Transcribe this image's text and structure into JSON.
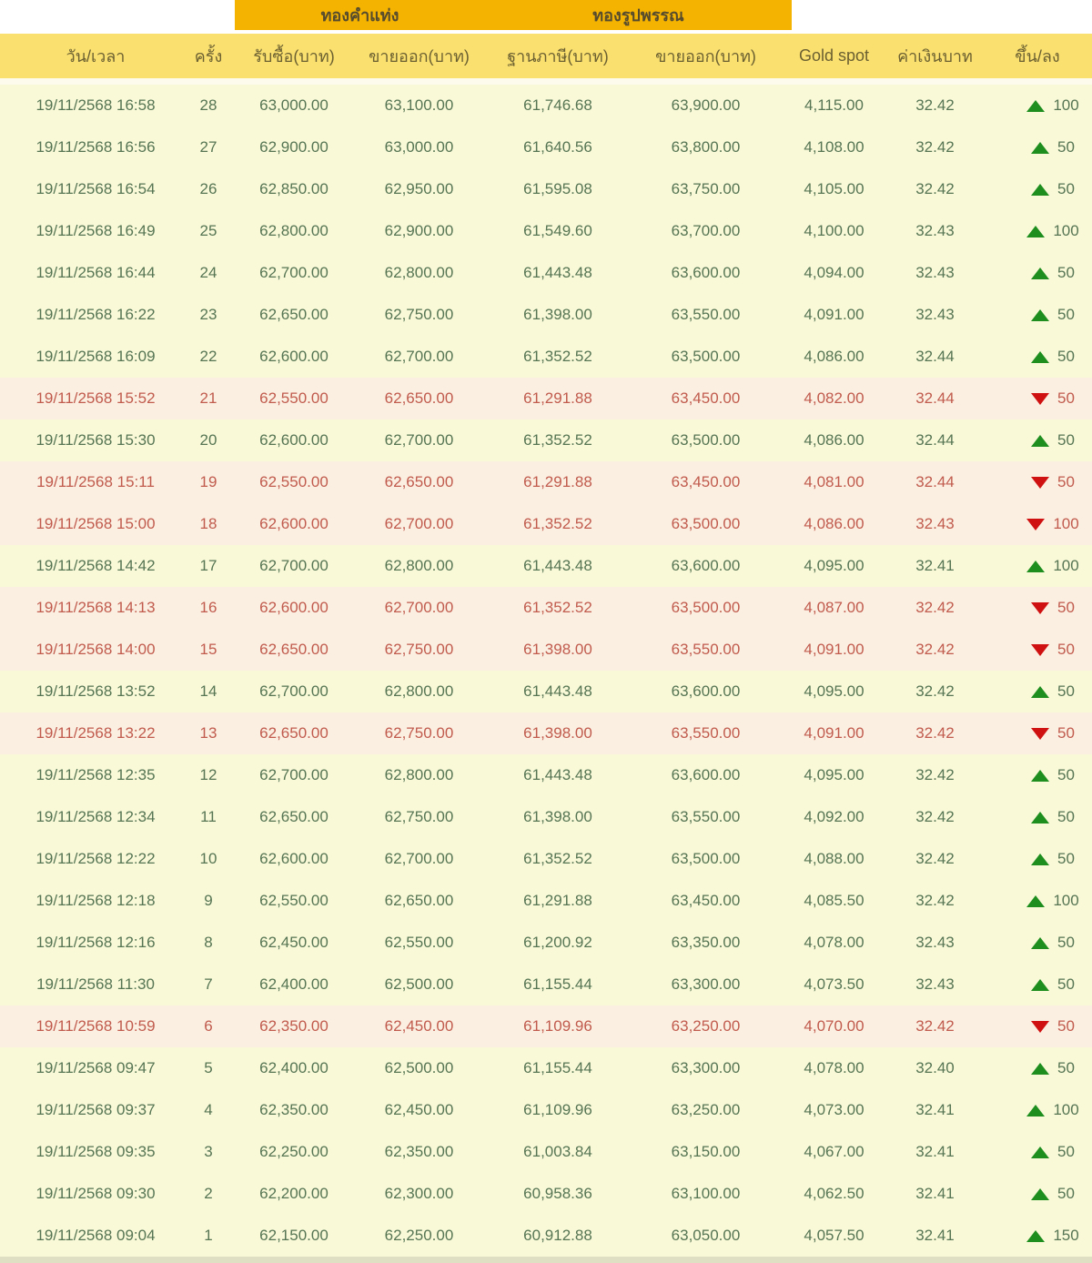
{
  "colors": {
    "band_bg": "#F5B301",
    "band_text": "#564C2D",
    "subheader_bg": "#FAE06E",
    "subheader_text": "#6B6032",
    "row_bg": "#F9F9D8",
    "row_bg_down": "#FBEFE2",
    "text_up": "#567553",
    "text_down": "#C05B4D",
    "arrow_up": "#1E8E1E",
    "arrow_down": "#D01111",
    "footer_bg": "#DFDFC3"
  },
  "header": {
    "group_headers": [
      {
        "label": "ทองคำแท่ง"
      },
      {
        "label": "ทองรูปพรรณ"
      }
    ],
    "columns": [
      "วัน/เวลา",
      "ครั้ง",
      "รับซื้อ(บาท)",
      "ขายออก(บาท)",
      "ฐานภาษี(บาท)",
      "ขายออก(บาท)",
      "Gold spot",
      "ค่าเงินบาท",
      "ขึ้น/ลง"
    ]
  },
  "table": {
    "rows": [
      {
        "datetime": "19/11/2568 16:58",
        "count": "28",
        "buy": "63,000.00",
        "sell": "63,100.00",
        "tax_base": "61,746.68",
        "ornament_sell": "63,900.00",
        "gold_spot": "4,115.00",
        "baht_rate": "32.42",
        "direction": "up",
        "change": "100"
      },
      {
        "datetime": "19/11/2568 16:56",
        "count": "27",
        "buy": "62,900.00",
        "sell": "63,000.00",
        "tax_base": "61,640.56",
        "ornament_sell": "63,800.00",
        "gold_spot": "4,108.00",
        "baht_rate": "32.42",
        "direction": "up",
        "change": "50"
      },
      {
        "datetime": "19/11/2568 16:54",
        "count": "26",
        "buy": "62,850.00",
        "sell": "62,950.00",
        "tax_base": "61,595.08",
        "ornament_sell": "63,750.00",
        "gold_spot": "4,105.00",
        "baht_rate": "32.42",
        "direction": "up",
        "change": "50"
      },
      {
        "datetime": "19/11/2568 16:49",
        "count": "25",
        "buy": "62,800.00",
        "sell": "62,900.00",
        "tax_base": "61,549.60",
        "ornament_sell": "63,700.00",
        "gold_spot": "4,100.00",
        "baht_rate": "32.43",
        "direction": "up",
        "change": "100"
      },
      {
        "datetime": "19/11/2568 16:44",
        "count": "24",
        "buy": "62,700.00",
        "sell": "62,800.00",
        "tax_base": "61,443.48",
        "ornament_sell": "63,600.00",
        "gold_spot": "4,094.00",
        "baht_rate": "32.43",
        "direction": "up",
        "change": "50"
      },
      {
        "datetime": "19/11/2568 16:22",
        "count": "23",
        "buy": "62,650.00",
        "sell": "62,750.00",
        "tax_base": "61,398.00",
        "ornament_sell": "63,550.00",
        "gold_spot": "4,091.00",
        "baht_rate": "32.43",
        "direction": "up",
        "change": "50"
      },
      {
        "datetime": "19/11/2568 16:09",
        "count": "22",
        "buy": "62,600.00",
        "sell": "62,700.00",
        "tax_base": "61,352.52",
        "ornament_sell": "63,500.00",
        "gold_spot": "4,086.00",
        "baht_rate": "32.44",
        "direction": "up",
        "change": "50"
      },
      {
        "datetime": "19/11/2568 15:52",
        "count": "21",
        "buy": "62,550.00",
        "sell": "62,650.00",
        "tax_base": "61,291.88",
        "ornament_sell": "63,450.00",
        "gold_spot": "4,082.00",
        "baht_rate": "32.44",
        "direction": "down",
        "change": "50"
      },
      {
        "datetime": "19/11/2568 15:30",
        "count": "20",
        "buy": "62,600.00",
        "sell": "62,700.00",
        "tax_base": "61,352.52",
        "ornament_sell": "63,500.00",
        "gold_spot": "4,086.00",
        "baht_rate": "32.44",
        "direction": "up",
        "change": "50"
      },
      {
        "datetime": "19/11/2568 15:11",
        "count": "19",
        "buy": "62,550.00",
        "sell": "62,650.00",
        "tax_base": "61,291.88",
        "ornament_sell": "63,450.00",
        "gold_spot": "4,081.00",
        "baht_rate": "32.44",
        "direction": "down",
        "change": "50"
      },
      {
        "datetime": "19/11/2568 15:00",
        "count": "18",
        "buy": "62,600.00",
        "sell": "62,700.00",
        "tax_base": "61,352.52",
        "ornament_sell": "63,500.00",
        "gold_spot": "4,086.00",
        "baht_rate": "32.43",
        "direction": "down",
        "change": "100"
      },
      {
        "datetime": "19/11/2568 14:42",
        "count": "17",
        "buy": "62,700.00",
        "sell": "62,800.00",
        "tax_base": "61,443.48",
        "ornament_sell": "63,600.00",
        "gold_spot": "4,095.00",
        "baht_rate": "32.41",
        "direction": "up",
        "change": "100"
      },
      {
        "datetime": "19/11/2568 14:13",
        "count": "16",
        "buy": "62,600.00",
        "sell": "62,700.00",
        "tax_base": "61,352.52",
        "ornament_sell": "63,500.00",
        "gold_spot": "4,087.00",
        "baht_rate": "32.42",
        "direction": "down",
        "change": "50"
      },
      {
        "datetime": "19/11/2568 14:00",
        "count": "15",
        "buy": "62,650.00",
        "sell": "62,750.00",
        "tax_base": "61,398.00",
        "ornament_sell": "63,550.00",
        "gold_spot": "4,091.00",
        "baht_rate": "32.42",
        "direction": "down",
        "change": "50"
      },
      {
        "datetime": "19/11/2568 13:52",
        "count": "14",
        "buy": "62,700.00",
        "sell": "62,800.00",
        "tax_base": "61,443.48",
        "ornament_sell": "63,600.00",
        "gold_spot": "4,095.00",
        "baht_rate": "32.42",
        "direction": "up",
        "change": "50"
      },
      {
        "datetime": "19/11/2568 13:22",
        "count": "13",
        "buy": "62,650.00",
        "sell": "62,750.00",
        "tax_base": "61,398.00",
        "ornament_sell": "63,550.00",
        "gold_spot": "4,091.00",
        "baht_rate": "32.42",
        "direction": "down",
        "change": "50"
      },
      {
        "datetime": "19/11/2568 12:35",
        "count": "12",
        "buy": "62,700.00",
        "sell": "62,800.00",
        "tax_base": "61,443.48",
        "ornament_sell": "63,600.00",
        "gold_spot": "4,095.00",
        "baht_rate": "32.42",
        "direction": "up",
        "change": "50"
      },
      {
        "datetime": "19/11/2568 12:34",
        "count": "11",
        "buy": "62,650.00",
        "sell": "62,750.00",
        "tax_base": "61,398.00",
        "ornament_sell": "63,550.00",
        "gold_spot": "4,092.00",
        "baht_rate": "32.42",
        "direction": "up",
        "change": "50"
      },
      {
        "datetime": "19/11/2568 12:22",
        "count": "10",
        "buy": "62,600.00",
        "sell": "62,700.00",
        "tax_base": "61,352.52",
        "ornament_sell": "63,500.00",
        "gold_spot": "4,088.00",
        "baht_rate": "32.42",
        "direction": "up",
        "change": "50"
      },
      {
        "datetime": "19/11/2568 12:18",
        "count": "9",
        "buy": "62,550.00",
        "sell": "62,650.00",
        "tax_base": "61,291.88",
        "ornament_sell": "63,450.00",
        "gold_spot": "4,085.50",
        "baht_rate": "32.42",
        "direction": "up",
        "change": "100"
      },
      {
        "datetime": "19/11/2568 12:16",
        "count": "8",
        "buy": "62,450.00",
        "sell": "62,550.00",
        "tax_base": "61,200.92",
        "ornament_sell": "63,350.00",
        "gold_spot": "4,078.00",
        "baht_rate": "32.43",
        "direction": "up",
        "change": "50"
      },
      {
        "datetime": "19/11/2568 11:30",
        "count": "7",
        "buy": "62,400.00",
        "sell": "62,500.00",
        "tax_base": "61,155.44",
        "ornament_sell": "63,300.00",
        "gold_spot": "4,073.50",
        "baht_rate": "32.43",
        "direction": "up",
        "change": "50"
      },
      {
        "datetime": "19/11/2568 10:59",
        "count": "6",
        "buy": "62,350.00",
        "sell": "62,450.00",
        "tax_base": "61,109.96",
        "ornament_sell": "63,250.00",
        "gold_spot": "4,070.00",
        "baht_rate": "32.42",
        "direction": "down",
        "change": "50"
      },
      {
        "datetime": "19/11/2568 09:47",
        "count": "5",
        "buy": "62,400.00",
        "sell": "62,500.00",
        "tax_base": "61,155.44",
        "ornament_sell": "63,300.00",
        "gold_spot": "4,078.00",
        "baht_rate": "32.40",
        "direction": "up",
        "change": "50"
      },
      {
        "datetime": "19/11/2568 09:37",
        "count": "4",
        "buy": "62,350.00",
        "sell": "62,450.00",
        "tax_base": "61,109.96",
        "ornament_sell": "63,250.00",
        "gold_spot": "4,073.00",
        "baht_rate": "32.41",
        "direction": "up",
        "change": "100"
      },
      {
        "datetime": "19/11/2568 09:35",
        "count": "3",
        "buy": "62,250.00",
        "sell": "62,350.00",
        "tax_base": "61,003.84",
        "ornament_sell": "63,150.00",
        "gold_spot": "4,067.00",
        "baht_rate": "32.41",
        "direction": "up",
        "change": "50"
      },
      {
        "datetime": "19/11/2568 09:30",
        "count": "2",
        "buy": "62,200.00",
        "sell": "62,300.00",
        "tax_base": "60,958.36",
        "ornament_sell": "63,100.00",
        "gold_spot": "4,062.50",
        "baht_rate": "32.41",
        "direction": "up",
        "change": "50"
      },
      {
        "datetime": "19/11/2568 09:04",
        "count": "1",
        "buy": "62,150.00",
        "sell": "62,250.00",
        "tax_base": "60,912.88",
        "ornament_sell": "63,050.00",
        "gold_spot": "4,057.50",
        "baht_rate": "32.41",
        "direction": "up",
        "change": "150"
      }
    ]
  }
}
